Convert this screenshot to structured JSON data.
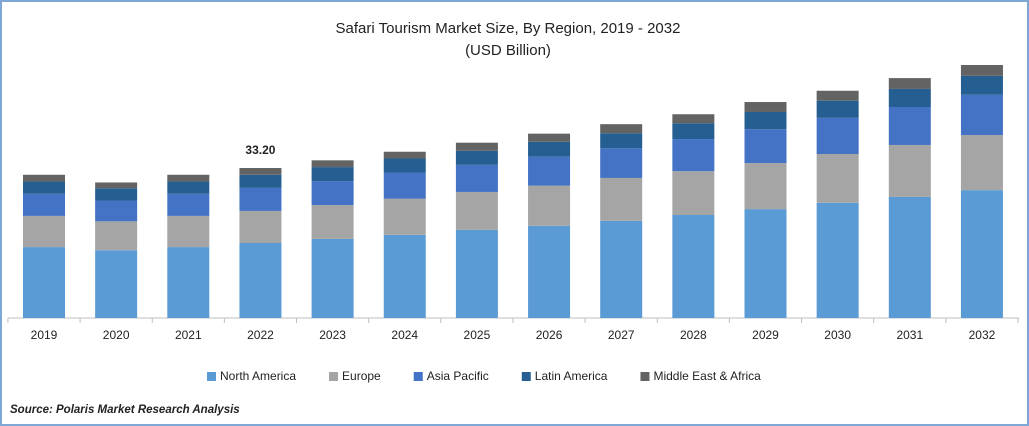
{
  "chart_data": {
    "type": "stacked_bar",
    "title": "Safari Tourism Market Size, By Region, 2019 - 2032",
    "subtitle": "(USD Billion)",
    "categories": [
      "2019",
      "2020",
      "2021",
      "2022",
      "2023",
      "2024",
      "2025",
      "2026",
      "2027",
      "2028",
      "2029",
      "2030",
      "2031",
      "2032"
    ],
    "series": [
      {
        "name": "North America",
        "color": "#5b9bd5",
        "values": [
          15.7,
          15.0,
          15.7,
          16.6,
          17.5,
          18.4,
          19.5,
          20.4,
          21.5,
          22.8,
          24.1,
          25.5,
          26.8,
          28.3
        ]
      },
      {
        "name": "Europe",
        "color": "#a5a5a5",
        "values": [
          6.9,
          6.4,
          6.9,
          7.1,
          7.5,
          8.0,
          8.4,
          8.9,
          9.5,
          9.7,
          10.2,
          10.8,
          11.5,
          12.2
        ]
      },
      {
        "name": "Asia Pacific",
        "color": "#4472c4",
        "values": [
          4.9,
          4.6,
          4.9,
          5.1,
          5.3,
          5.8,
          6.0,
          6.4,
          6.6,
          7.1,
          7.5,
          8.0,
          8.4,
          8.9
        ]
      },
      {
        "name": "Latin America",
        "color": "#255e91",
        "values": [
          2.7,
          2.7,
          2.7,
          2.9,
          3.1,
          3.1,
          3.1,
          3.3,
          3.3,
          3.5,
          3.8,
          3.8,
          4.0,
          4.2
        ]
      },
      {
        "name": "Middle East & Africa",
        "color": "#636363",
        "values": [
          1.5,
          1.3,
          1.5,
          1.5,
          1.5,
          1.5,
          1.8,
          1.8,
          2.0,
          2.0,
          2.2,
          2.2,
          2.4,
          2.4
        ]
      }
    ],
    "annotations": [
      {
        "x": "2022",
        "value": 33.2,
        "label": "33.20"
      }
    ],
    "legend": "bottom",
    "source": "Source: Polaris  Market Research Analysis"
  }
}
